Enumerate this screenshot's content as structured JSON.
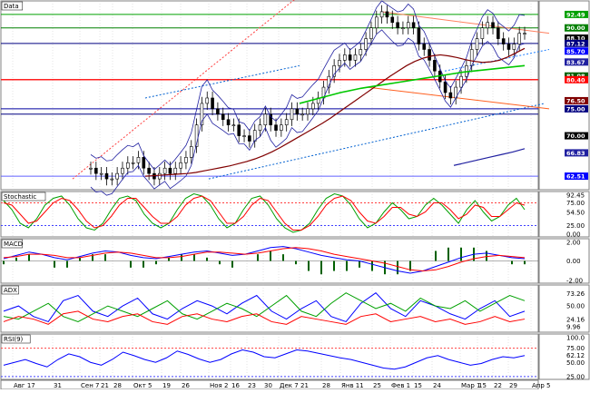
{
  "window": {
    "panel_labels": [
      "Data",
      "Stochastic",
      "MACD",
      "ADX",
      "RSI(9)"
    ]
  },
  "chart_data": [
    {
      "type": "candlestick",
      "panel": "Data",
      "ylim": [
        60,
        95
      ],
      "x_labels": [
        "Авг 17",
        "31",
        "Сен 7",
        "21",
        "28",
        "Окт 5",
        "19",
        "26",
        "Ноя 2",
        "16",
        "23",
        "30",
        "Дек 7",
        "21",
        "28",
        "Янв 11",
        "25",
        "Фев 1",
        "15",
        "24",
        "Мар 1",
        "15",
        "22",
        "29",
        "Апр 5"
      ],
      "close": [
        64,
        63,
        63,
        62,
        62,
        63,
        64,
        65,
        65,
        66,
        64,
        63,
        62,
        63,
        64,
        63,
        64,
        65,
        66,
        68,
        72,
        76,
        77,
        75,
        74,
        73,
        72,
        72,
        70,
        70,
        69,
        71,
        72,
        74,
        72,
        71,
        72,
        73,
        75,
        74,
        74,
        75,
        76,
        77,
        79,
        81,
        83,
        84,
        85,
        84,
        85,
        86,
        88,
        90,
        92,
        93,
        92,
        91,
        90,
        90,
        91,
        90,
        87,
        86,
        84,
        82,
        80,
        78,
        77,
        79,
        81,
        83,
        86,
        88,
        90,
        91,
        90,
        88,
        87,
        86,
        87,
        89,
        89
      ],
      "series_lines": [
        {
          "name": "MA-1",
          "color": "#800000",
          "values": [
            62.5,
            62.6,
            62.7,
            62.8,
            62.9,
            63,
            63.2,
            63.5,
            63.8,
            64.1,
            64.4,
            64.8,
            65.2,
            65.7,
            66.3,
            67,
            67.8,
            68.7,
            69.6,
            70.5,
            71.4,
            72.3,
            73.3,
            74.4,
            75.5,
            76.6,
            77.7,
            78.8,
            79.9,
            81,
            82,
            83,
            83.8,
            84.4,
            84.8,
            85,
            84.8,
            84.5,
            84.1,
            83.8,
            83.6,
            83.7,
            84,
            84.6,
            85.4,
            86.2
          ]
        },
        {
          "name": "MA-2",
          "color": "#00c800",
          "values": [
            76,
            77,
            78,
            78.8,
            79.4,
            80,
            80.6,
            81.2,
            81.8,
            82.2,
            82.6,
            83
          ]
        },
        {
          "name": "MA-3",
          "color": "#2020a0",
          "values": [
            64.5,
            65,
            65.5,
            66,
            66.5,
            67,
            67.6
          ]
        }
      ],
      "right_axis_labels": [
        "92.49",
        "90.00",
        "88.10",
        "87.12",
        "85.70",
        "83.67",
        "81.08",
        "80.40",
        "76.50",
        "75.00",
        "70.00",
        "66.83",
        "62.51"
      ],
      "badge_colors": {
        "92.49": "#00a000",
        "90.00": "#008000",
        "88.10": "#000000",
        "87.12": "#000080",
        "85.70": "#0000ff",
        "83.67": "#2020a0",
        "81.08": "#006000",
        "80.40": "#ff0000",
        "76.50": "#800000",
        "75.00": "#000080",
        "70.00": "#000000",
        "66.83": "#2020a0",
        "62.51": "#0000ff"
      }
    },
    {
      "type": "line",
      "panel": "Stochastic",
      "ylim": [
        0,
        100
      ],
      "right_axis_labels": [
        "92.45",
        "75.00",
        "54.50",
        "25.00",
        "0.00"
      ],
      "series": [
        {
          "name": "%K",
          "color": "#00a000",
          "values": [
            80,
            60,
            30,
            20,
            40,
            70,
            85,
            90,
            70,
            40,
            20,
            15,
            30,
            60,
            85,
            90,
            80,
            50,
            30,
            20,
            30,
            60,
            85,
            95,
            90,
            70,
            40,
            20,
            30,
            60,
            85,
            90,
            70,
            40,
            20,
            10,
            15,
            30,
            60,
            85,
            95,
            90,
            70,
            40,
            20,
            30,
            55,
            75,
            60,
            40,
            45,
            70,
            85,
            70,
            50,
            30,
            60,
            80,
            55,
            35,
            45,
            70,
            85,
            60
          ]
        },
        {
          "name": "%D",
          "color": "#ff0000",
          "values": [
            75,
            70,
            50,
            30,
            35,
            55,
            75,
            85,
            80,
            60,
            35,
            20,
            25,
            45,
            70,
            85,
            85,
            65,
            45,
            30,
            30,
            45,
            70,
            85,
            90,
            80,
            55,
            30,
            30,
            45,
            70,
            85,
            80,
            55,
            30,
            15,
            15,
            25,
            45,
            70,
            85,
            90,
            80,
            55,
            35,
            30,
            45,
            65,
            65,
            50,
            45,
            55,
            75,
            75,
            60,
            40,
            50,
            70,
            65,
            45,
            45,
            60,
            75,
            70
          ]
        }
      ]
    },
    {
      "type": "line",
      "panel": "MACD",
      "ylim": [
        -2,
        2
      ],
      "right_axis_labels": [
        "2.00",
        "0.00",
        "-2.00"
      ],
      "series": [
        {
          "name": "MACD",
          "color": "#0000ff",
          "values": [
            0.2,
            0.5,
            0.8,
            0.6,
            0.3,
            0.1,
            0.4,
            0.7,
            0.9,
            0.8,
            0.5,
            0.3,
            0.2,
            0.4,
            0.6,
            0.8,
            0.9,
            0.7,
            0.5,
            0.6,
            0.9,
            1.2,
            1.3,
            1.1,
            0.8,
            0.5,
            0.3,
            0.1,
            0,
            -0.3,
            -0.6,
            -0.9,
            -1.1,
            -0.9,
            -0.5,
            -0.1,
            0.3,
            0.6,
            0.7,
            0.5,
            0.3,
            0.2
          ]
        },
        {
          "name": "Signal",
          "color": "#ff0000",
          "values": [
            0.3,
            0.4,
            0.6,
            0.6,
            0.5,
            0.3,
            0.3,
            0.5,
            0.7,
            0.8,
            0.7,
            0.5,
            0.3,
            0.3,
            0.4,
            0.6,
            0.8,
            0.8,
            0.7,
            0.6,
            0.7,
            0.9,
            1.1,
            1.2,
            1.1,
            0.9,
            0.6,
            0.4,
            0.2,
            0,
            -0.2,
            -0.5,
            -0.8,
            -0.9,
            -0.8,
            -0.5,
            -0.1,
            0.2,
            0.4,
            0.5,
            0.4,
            0.3
          ]
        }
      ]
    },
    {
      "type": "line",
      "panel": "ADX",
      "ylim": [
        0,
        90
      ],
      "right_axis_labels": [
        "73.26",
        "50.00",
        "24.16",
        "9.96"
      ],
      "series": [
        {
          "name": "ADX",
          "color": "#0000ff",
          "values": [
            40,
            50,
            30,
            20,
            60,
            70,
            40,
            30,
            50,
            65,
            35,
            25,
            45,
            60,
            50,
            35,
            55,
            70,
            40,
            25,
            45,
            60,
            30,
            20,
            55,
            75,
            45,
            30,
            60,
            50,
            35,
            25,
            45,
            60,
            30,
            40
          ]
        },
        {
          "name": "+DI",
          "color": "#00a000",
          "values": [
            30,
            25,
            40,
            55,
            30,
            20,
            35,
            50,
            40,
            30,
            45,
            60,
            35,
            25,
            40,
            55,
            45,
            30,
            50,
            70,
            40,
            30,
            55,
            75,
            60,
            45,
            55,
            40,
            65,
            50,
            45,
            60,
            40,
            55,
            70,
            60
          ]
        },
        {
          "name": "-DI",
          "color": "#ff0000",
          "values": [
            20,
            30,
            25,
            15,
            35,
            40,
            25,
            20,
            30,
            35,
            20,
            15,
            30,
            35,
            25,
            20,
            30,
            35,
            20,
            15,
            30,
            25,
            20,
            15,
            30,
            35,
            20,
            25,
            30,
            20,
            25,
            15,
            20,
            30,
            20,
            25
          ]
        }
      ]
    },
    {
      "type": "line",
      "panel": "RSI(9)",
      "ylim": [
        20,
        100
      ],
      "right_axis_labels": [
        "100.0",
        "75.00",
        "62.12",
        "50.00",
        "25.00"
      ],
      "series": [
        {
          "name": "RSI",
          "color": "#0000ff",
          "values": [
            45,
            50,
            55,
            48,
            42,
            55,
            65,
            60,
            50,
            45,
            55,
            68,
            62,
            55,
            50,
            58,
            70,
            64,
            56,
            50,
            55,
            65,
            72,
            68,
            60,
            58,
            65,
            72,
            70,
            66,
            62,
            58,
            55,
            50,
            45,
            40,
            38,
            42,
            50,
            58,
            62,
            55,
            50,
            45,
            48,
            55,
            60,
            58,
            62
          ]
        }
      ]
    }
  ]
}
